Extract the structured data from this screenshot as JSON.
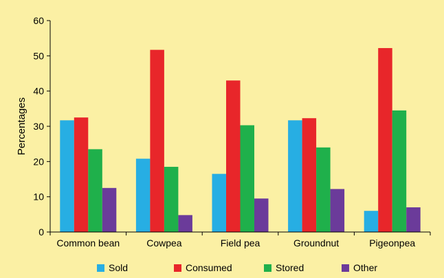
{
  "chart_data": {
    "type": "bar",
    "title": "",
    "xlabel": "",
    "ylabel": "Percentages",
    "ylim": [
      0,
      60
    ],
    "yticks": [
      0,
      10,
      20,
      30,
      40,
      50,
      60
    ],
    "grid": false,
    "legend_position": "bottom",
    "categories": [
      "Common bean",
      "Cowpea",
      "Field pea",
      "Groundnut",
      "Pigeonpea"
    ],
    "series": [
      {
        "name": "Sold",
        "color": "#27aee3",
        "values": [
          31.7,
          20.8,
          16.5,
          31.7,
          6.0
        ]
      },
      {
        "name": "Consumed",
        "color": "#e8262a",
        "values": [
          32.5,
          51.7,
          43.0,
          32.3,
          52.2
        ]
      },
      {
        "name": "Stored",
        "color": "#1fb04b",
        "values": [
          23.5,
          18.5,
          30.3,
          24.0,
          34.5
        ]
      },
      {
        "name": "Other",
        "color": "#6b3b9a",
        "values": [
          12.5,
          4.8,
          9.5,
          12.2,
          7.0
        ]
      }
    ]
  }
}
